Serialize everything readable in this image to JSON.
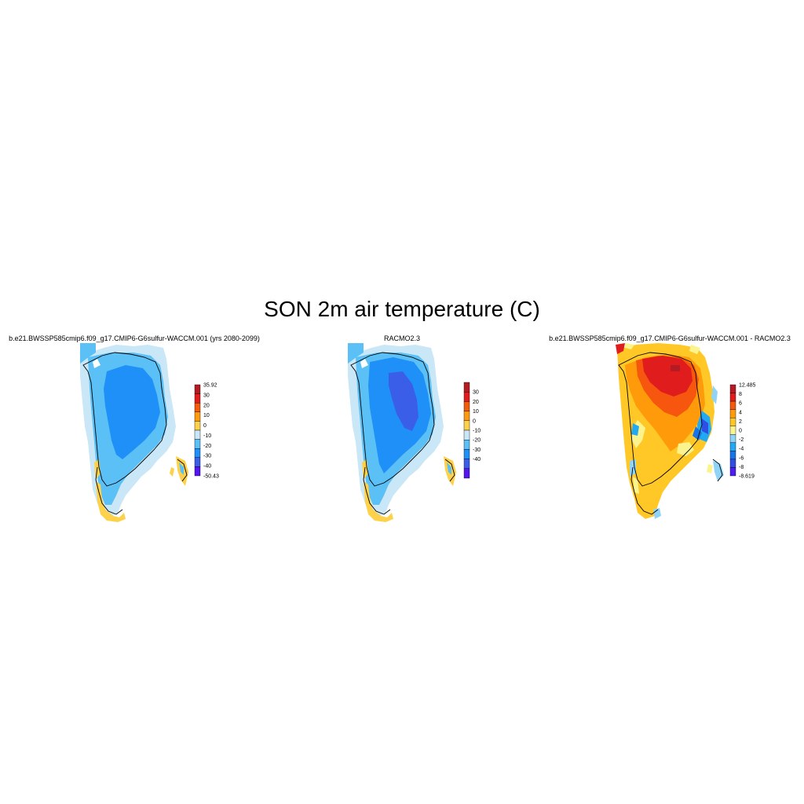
{
  "title": "SON 2m air temperature (C)",
  "palette": {
    "temp": [
      "#5316f0",
      "#3b5ee8",
      "#1e90f7",
      "#5ac0f6",
      "#c9e7f7",
      "#fed14a",
      "#fe9a0c",
      "#f25c0a",
      "#e41b1b",
      "#b51c22"
    ],
    "diff": [
      "#4b1df0",
      "#2f4ee6",
      "#1575e8",
      "#23a8f2",
      "#8fd3f7",
      "#fbf48e",
      "#ffc826",
      "#ff9a0a",
      "#f6560e",
      "#e01c1c",
      "#b51b25"
    ],
    "coast_color": "#000000"
  },
  "panels": [
    {
      "title": "b.e21.BWSSP585cmip6.f09_g17.CMIP6-G6sulfur-WACCM.001 (yrs 2080-2099)",
      "colorbar": {
        "palette": "temp",
        "labels": [
          "35.92",
          "30",
          "20",
          "10",
          "0",
          "-10",
          "-20",
          "-30",
          "-40",
          "-50.43"
        ]
      }
    },
    {
      "title": "RACMO2.3",
      "colorbar": {
        "palette": "temp",
        "labels": [
          "30",
          "20",
          "10",
          "0",
          "-10",
          "-20",
          "-30",
          "-40"
        ]
      }
    },
    {
      "title": "b.e21.BWSSP585cmip6.f09_g17.CMIP6-G6sulfur-WACCM.001 - RACMO2.3",
      "colorbar": {
        "palette": "diff",
        "labels": [
          "12.485",
          "8",
          "6",
          "4",
          "2",
          "0",
          "-2",
          "-4",
          "-6",
          "-8",
          "-8.619"
        ]
      }
    }
  ]
}
